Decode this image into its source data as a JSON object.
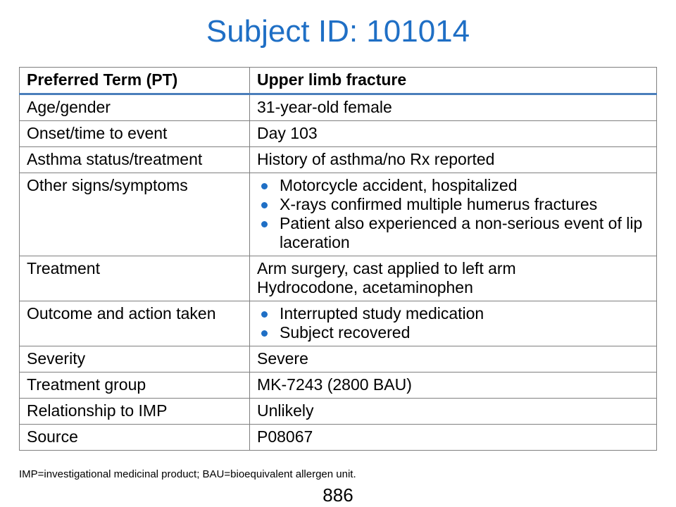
{
  "title": "Subject ID: 101014",
  "table": {
    "header": {
      "label": "Preferred Term (PT)",
      "value": "Upper limb fracture"
    },
    "rows": [
      {
        "label": "Age/gender",
        "value": "31-year-old female"
      },
      {
        "label": "Onset/time to event",
        "value": "Day 103"
      },
      {
        "label": "Asthma status/treatment",
        "value": "History of asthma/no Rx reported"
      },
      {
        "label": "Other signs/symptoms",
        "bullets": [
          "Motorcycle accident, hospitalized",
          "X-rays confirmed multiple humerus fractures",
          "Patient also experienced a non-serious event of lip laceration"
        ]
      },
      {
        "label": "Treatment",
        "lines": [
          "Arm surgery, cast applied to left arm",
          "Hydrocodone, acetaminophen"
        ]
      },
      {
        "label": "Outcome and action taken",
        "bullets": [
          "Interrupted study medication",
          "Subject recovered"
        ]
      },
      {
        "label": "Severity",
        "value": "Severe"
      },
      {
        "label": "Treatment group",
        "value": "MK-7243 (2800 BAU)"
      },
      {
        "label": "Relationship to IMP",
        "value": "Unlikely"
      },
      {
        "label": "Source",
        "value": "P08067"
      }
    ]
  },
  "footnote": "IMP=investigational medicinal product; BAU=bioequivalent allergen unit.",
  "page_number": "886",
  "colors": {
    "title": "#1f6fc5",
    "bullet": "#1f6fc5",
    "header_rule": "#4a7ebb",
    "border": "#7f7f7f"
  }
}
